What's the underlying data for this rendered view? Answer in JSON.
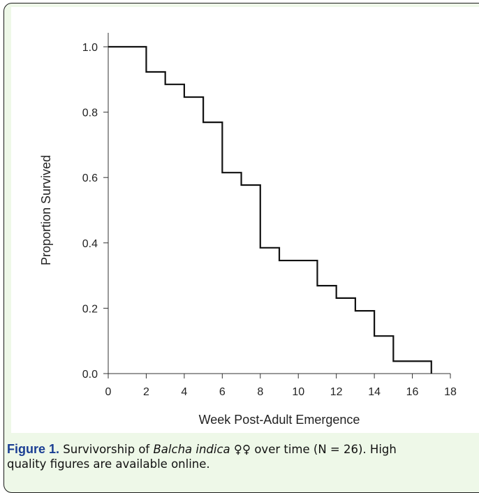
{
  "chart_data": {
    "type": "line",
    "subtype": "step",
    "xlabel": "Week Post-Adult Emergence",
    "ylabel": "Proportion Survived",
    "xlim": [
      0,
      18
    ],
    "ylim": [
      0.0,
      1.0
    ],
    "xticks": [
      "0",
      "2",
      "4",
      "6",
      "8",
      "10",
      "12",
      "14",
      "16",
      "18"
    ],
    "yticks": [
      "0.0",
      "0.2",
      "0.4",
      "0.6",
      "0.8",
      "1.0"
    ],
    "grid": false,
    "series": [
      {
        "x": [
          0,
          2,
          3,
          4,
          5,
          6,
          7,
          8,
          9,
          11,
          12,
          13,
          14,
          15,
          17
        ],
        "y": [
          1.0,
          0.923,
          0.885,
          0.846,
          0.769,
          0.615,
          0.577,
          0.385,
          0.346,
          0.269,
          0.231,
          0.192,
          0.115,
          0.038,
          0.0
        ]
      }
    ],
    "color": "#111111"
  },
  "caption": {
    "label": "Figure 1.",
    "text_before": " Survivorship of ",
    "species": "Balcha indica",
    "text_after": " ♀♀ over time (N = 26). High",
    "line2": "quality figures are available online."
  }
}
